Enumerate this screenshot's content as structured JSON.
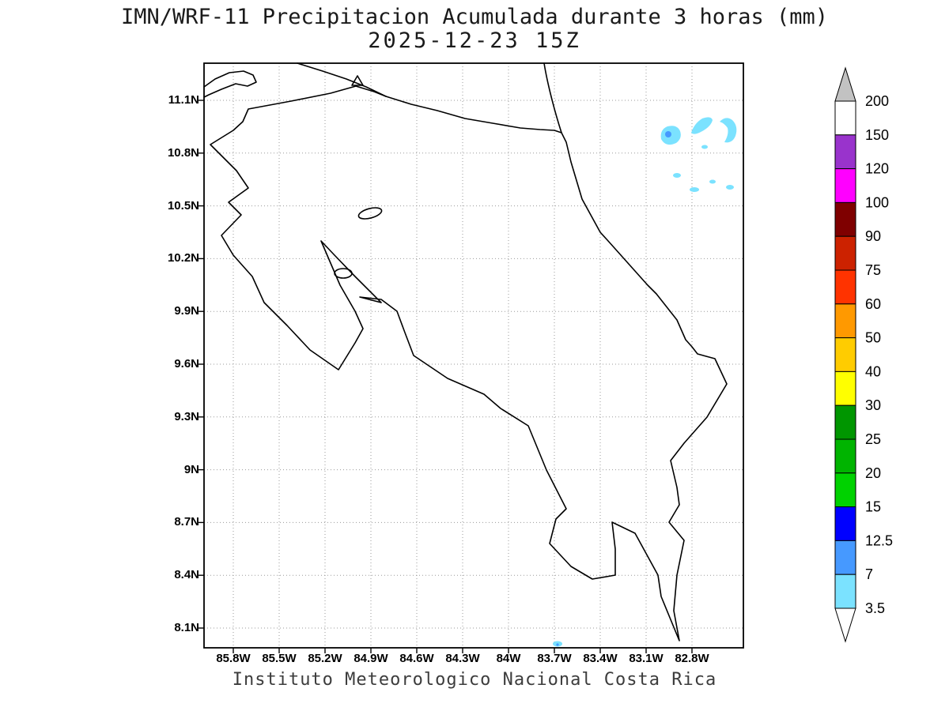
{
  "header": {
    "title_line1": "IMN/WRF-11 Precipitacion Acumulada durante 3 horas (mm)",
    "title_line2": "2025-12-23 15Z"
  },
  "footer": {
    "credit": "Instituto Meteorologico Nacional Costa Rica"
  },
  "map": {
    "lat_tick_labels": [
      "11.1N",
      "10.8N",
      "10.5N",
      "10.2N",
      "9.9N",
      "9.6N",
      "9.3N",
      "9N",
      "8.7N",
      "8.4N",
      "8.1N"
    ],
    "lon_tick_labels": [
      "85.8W",
      "85.5W",
      "85.2W",
      "84.9W",
      "84.6W",
      "84.3W",
      "84W",
      "83.7W",
      "83.4W",
      "83.1W",
      "82.8W"
    ]
  },
  "colorbar": {
    "tick_labels": [
      "200",
      "150",
      "120",
      "100",
      "90",
      "75",
      "60",
      "50",
      "40",
      "30",
      "25",
      "20",
      "15",
      "12.5",
      "7",
      "3.5"
    ],
    "segment_colors_top_to_bottom": [
      "#ffffff",
      "#9933cc",
      "#ff00ff",
      "#7f0000",
      "#cc2200",
      "#ff3300",
      "#ff9900",
      "#ffcc00",
      "#ffff00",
      "#009600",
      "#00b400",
      "#00d200",
      "#0000ff",
      "#4699ff",
      "#7be2ff"
    ],
    "above_max_color": "#c2c2c2",
    "below_min_color": "#ffffff"
  },
  "overlay": {
    "low_color": "#7be2ff",
    "mid_color": "#4699ff"
  },
  "chart_data": {
    "type": "map",
    "model": "IMN/WRF-11",
    "variable": "Precipitacion Acumulada durante 3 horas",
    "unit": "mm",
    "valid_time": "2025-12-23 15Z",
    "region": "Costa Rica",
    "lat_ticks": [
      "11.1N",
      "10.8N",
      "10.5N",
      "10.2N",
      "9.9N",
      "9.6N",
      "9.3N",
      "9N",
      "8.7N",
      "8.4N",
      "8.1N"
    ],
    "lon_ticks": [
      "85.8W",
      "85.5W",
      "85.2W",
      "84.9W",
      "84.6W",
      "84.3W",
      "84W",
      "83.7W",
      "83.4W",
      "83.1W",
      "82.8W"
    ],
    "colorbar_levels_mm": [
      3.5,
      7,
      12.5,
      15,
      20,
      25,
      30,
      40,
      50,
      60,
      75,
      90,
      100,
      120,
      150,
      200
    ],
    "observed_features": [
      {
        "area": "Caribbean offshore, approx 10.75N-10.95N / 82.8W-83.3W",
        "value_range_mm": "3.5-12.5"
      },
      {
        "area": "Scattered small cells, approx 10.45N-10.6N / 82.8W-83.2W",
        "value_range_mm": "3.5-7"
      },
      {
        "area": "Tiny cell near 8.05N / 83.75W (south edge)",
        "value_range_mm": "3.5-7"
      }
    ]
  }
}
